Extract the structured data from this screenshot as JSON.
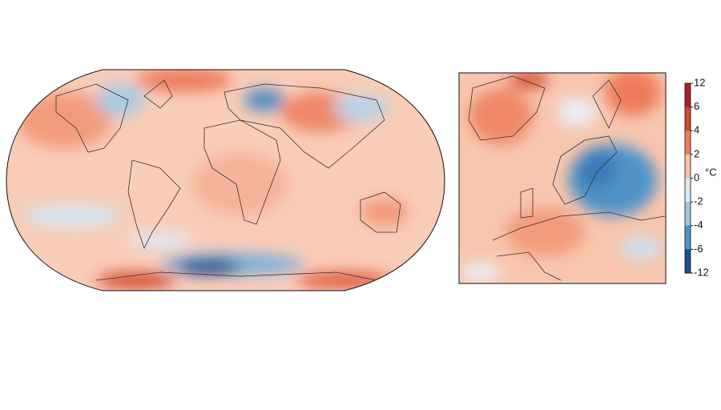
{
  "colorbar": {
    "unit": "°C",
    "ticks": [
      12,
      6,
      4,
      2,
      0,
      -2,
      -4,
      -6,
      -12
    ],
    "colors": [
      "#b2182b",
      "#d6472f",
      "#ef7c5a",
      "#f9c2a8",
      "#dbe8f3",
      "#9fc6e3",
      "#4f93c8",
      "#1f4f93"
    ]
  }
}
